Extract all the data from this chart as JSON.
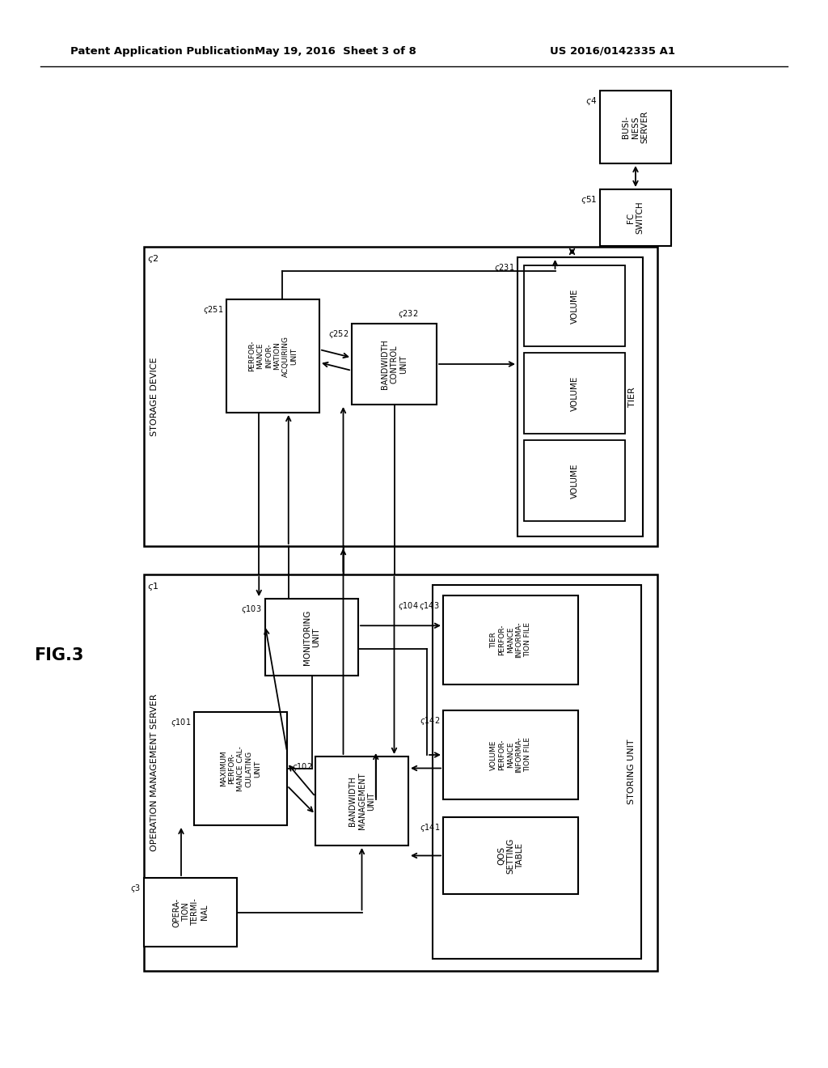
{
  "title_left": "Patent Application Publication",
  "title_mid": "May 19, 2016  Sheet 3 of 8",
  "title_right": "US 2016/0142335 A1",
  "fig_label": "FIG.3",
  "bg_color": "#ffffff",
  "line_color": "#000000"
}
